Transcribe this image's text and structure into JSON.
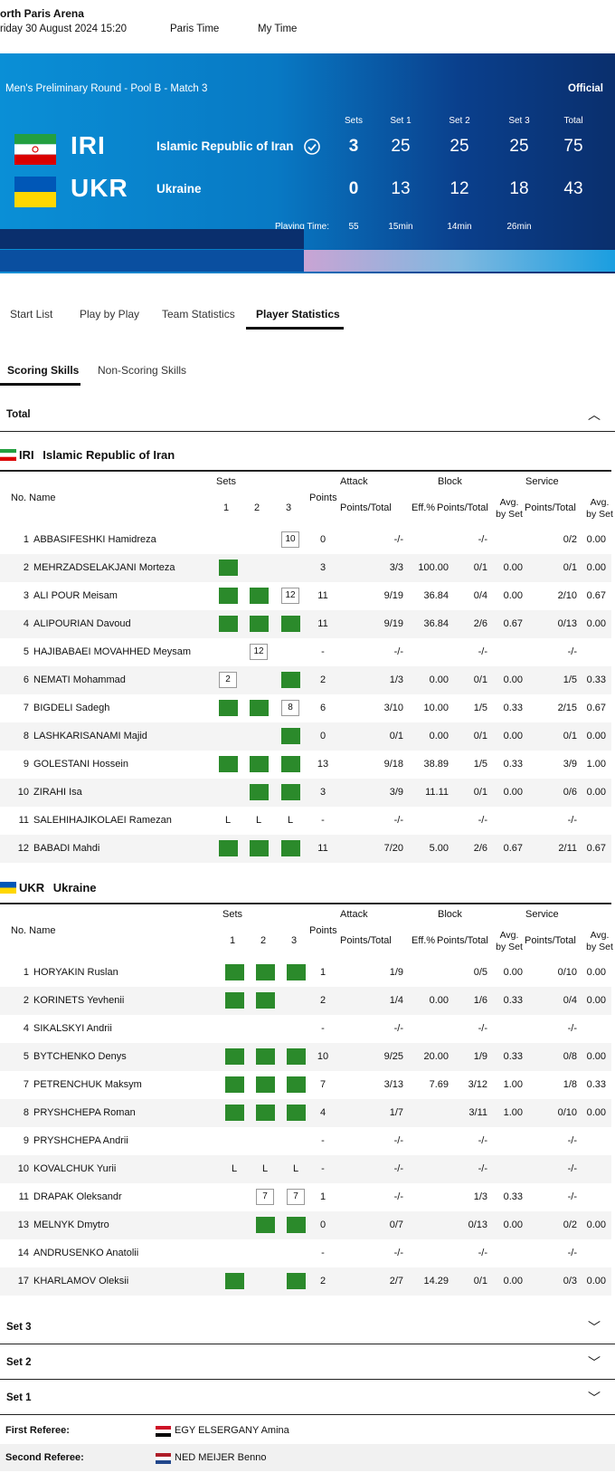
{
  "header": {
    "venue": "orth Paris Arena",
    "date": "riday 30 August 2024 15:20",
    "paris_time": "Paris Time",
    "my_time": "My Time"
  },
  "match": {
    "round": "Men's Preliminary Round - Pool B - Match 3",
    "status": "Official",
    "columns": [
      "Sets",
      "Set 1",
      "Set 2",
      "Set 3",
      "Total"
    ],
    "teams": [
      {
        "code": "IRI",
        "name": "Islamic Republic of Iran",
        "sets": "3",
        "set1": "25",
        "set2": "25",
        "set3": "25",
        "total": "75",
        "winner_icon": "check-circle-icon"
      },
      {
        "code": "UKR",
        "name": "Ukraine",
        "sets": "0",
        "set1": "13",
        "set2": "12",
        "set3": "18",
        "total": "43"
      }
    ],
    "playing_time_label": "Playing Time:",
    "playing_time": [
      "55",
      "15min",
      "14min",
      "26min"
    ]
  },
  "tabs": [
    "Start List",
    "Play by Play",
    "Team Statistics",
    "Player Statistics"
  ],
  "subtabs": [
    "Scoring Skills",
    "Non-Scoring Skills"
  ],
  "total_label": "Total",
  "col_headers": {
    "sets": "Sets",
    "s1": "1",
    "s2": "2",
    "s3": "3",
    "no_name": "No. Name",
    "points": "Points",
    "attack": "Attack",
    "block": "Block",
    "service": "Service",
    "pt": "Points/Total",
    "eff": "Eff.%",
    "avg1": "Avg.",
    "avg2": "by Set"
  },
  "team_stats": [
    {
      "code": "IRI",
      "name": "Islamic Republic of Iran",
      "players": [
        {
          "no": "1",
          "name": "ABBASIFESHKI Hamidreza",
          "s1": "",
          "s2": "",
          "s3": "10",
          "pts": "0",
          "apt": "-/-",
          "eff": "",
          "bpt": "-/-",
          "bavg": "",
          "spt": "0/2",
          "savg": "0.00"
        },
        {
          "no": "2",
          "name": "MEHRZADSELAKJANI Morteza",
          "s1": "G",
          "s2": "",
          "s3": "",
          "pts": "3",
          "apt": "3/3",
          "eff": "100.00",
          "bpt": "0/1",
          "bavg": "0.00",
          "spt": "0/1",
          "savg": "0.00"
        },
        {
          "no": "3",
          "name": "ALI POUR Meisam",
          "s1": "G",
          "s2": "G",
          "s3": "12",
          "pts": "11",
          "apt": "9/19",
          "eff": "36.84",
          "bpt": "0/4",
          "bavg": "0.00",
          "spt": "2/10",
          "savg": "0.67"
        },
        {
          "no": "4",
          "name": "ALIPOURIAN Davoud",
          "s1": "G",
          "s2": "G",
          "s3": "G",
          "pts": "11",
          "apt": "9/19",
          "eff": "36.84",
          "bpt": "2/6",
          "bavg": "0.67",
          "spt": "0/13",
          "savg": "0.00"
        },
        {
          "no": "5",
          "name": "HAJIBABAEI MOVAHHED Meysam",
          "s1": "",
          "s2": "12",
          "s3": "",
          "pts": "-",
          "apt": "-/-",
          "eff": "",
          "bpt": "-/-",
          "bavg": "",
          "spt": "-/-",
          "savg": ""
        },
        {
          "no": "6",
          "name": "NEMATI Mohammad",
          "s1": "2",
          "s2": "",
          "s3": "G",
          "pts": "2",
          "apt": "1/3",
          "eff": "0.00",
          "bpt": "0/1",
          "bavg": "0.00",
          "spt": "1/5",
          "savg": "0.33"
        },
        {
          "no": "7",
          "name": "BIGDELI Sadegh",
          "s1": "G",
          "s2": "G",
          "s3": "8",
          "pts": "6",
          "apt": "3/10",
          "eff": "10.00",
          "bpt": "1/5",
          "bavg": "0.33",
          "spt": "2/15",
          "savg": "0.67"
        },
        {
          "no": "8",
          "name": "LASHKARISANAMI Majid",
          "s1": "",
          "s2": "",
          "s3": "G",
          "pts": "0",
          "apt": "0/1",
          "eff": "0.00",
          "bpt": "0/1",
          "bavg": "0.00",
          "spt": "0/1",
          "savg": "0.00"
        },
        {
          "no": "9",
          "name": "GOLESTANI Hossein",
          "s1": "G",
          "s2": "G",
          "s3": "G",
          "pts": "13",
          "apt": "9/18",
          "eff": "38.89",
          "bpt": "1/5",
          "bavg": "0.33",
          "spt": "3/9",
          "savg": "1.00"
        },
        {
          "no": "10",
          "name": "ZIRAHI Isa",
          "s1": "",
          "s2": "G",
          "s3": "G",
          "pts": "3",
          "apt": "3/9",
          "eff": "11.11",
          "bpt": "0/1",
          "bavg": "0.00",
          "spt": "0/6",
          "savg": "0.00"
        },
        {
          "no": "11",
          "name": "SALEHIHAJIKOLAEI Ramezan",
          "s1": "L",
          "s2": "L",
          "s3": "L",
          "pts": "-",
          "apt": "-/-",
          "eff": "",
          "bpt": "-/-",
          "bavg": "",
          "spt": "-/-",
          "savg": ""
        },
        {
          "no": "12",
          "name": "BABADI Mahdi",
          "s1": "G",
          "s2": "G",
          "s3": "G",
          "pts": "11",
          "apt": "7/20",
          "eff": "5.00",
          "bpt": "2/6",
          "bavg": "0.67",
          "spt": "2/11",
          "savg": "0.67"
        }
      ]
    },
    {
      "code": "UKR",
      "name": "Ukraine",
      "players": [
        {
          "no": "1",
          "name": "HORYAKIN Ruslan",
          "s1": "G",
          "s2": "G",
          "s3": "G",
          "pts": "1",
          "apt": "1/9",
          "eff": "",
          "bpt": "0/5",
          "bavg": "0.00",
          "spt": "0/10",
          "savg": "0.00"
        },
        {
          "no": "2",
          "name": "KORINETS Yevhenii",
          "s1": "G",
          "s2": "G",
          "s3": "",
          "pts": "2",
          "apt": "1/4",
          "eff": "0.00",
          "bpt": "1/6",
          "bavg": "0.33",
          "spt": "0/4",
          "savg": "0.00"
        },
        {
          "no": "4",
          "name": "SIKALSKYI Andrii",
          "s1": "",
          "s2": "",
          "s3": "",
          "pts": "-",
          "apt": "-/-",
          "eff": "",
          "bpt": "-/-",
          "bavg": "",
          "spt": "-/-",
          "savg": ""
        },
        {
          "no": "5",
          "name": "BYTCHENKO Denys",
          "s1": "G",
          "s2": "G",
          "s3": "G",
          "pts": "10",
          "apt": "9/25",
          "eff": "20.00",
          "bpt": "1/9",
          "bavg": "0.33",
          "spt": "0/8",
          "savg": "0.00"
        },
        {
          "no": "7",
          "name": "PETRENCHUK Maksym",
          "s1": "G",
          "s2": "G",
          "s3": "G",
          "pts": "7",
          "apt": "3/13",
          "eff": "7.69",
          "bpt": "3/12",
          "bavg": "1.00",
          "spt": "1/8",
          "savg": "0.33"
        },
        {
          "no": "8",
          "name": "PRYSHCHEPA Roman",
          "s1": "G",
          "s2": "G",
          "s3": "G",
          "pts": "4",
          "apt": "1/7",
          "eff": "",
          "bpt": "3/11",
          "bavg": "1.00",
          "spt": "0/10",
          "savg": "0.00"
        },
        {
          "no": "9",
          "name": "PRYSHCHEPA Andrii",
          "s1": "",
          "s2": "",
          "s3": "",
          "pts": "-",
          "apt": "-/-",
          "eff": "",
          "bpt": "-/-",
          "bavg": "",
          "spt": "-/-",
          "savg": ""
        },
        {
          "no": "10",
          "name": "KOVALCHUK Yurii",
          "s1": "L",
          "s2": "L",
          "s3": "L",
          "pts": "-",
          "apt": "-/-",
          "eff": "",
          "bpt": "-/-",
          "bavg": "",
          "spt": "-/-",
          "savg": ""
        },
        {
          "no": "11",
          "name": "DRAPAK Oleksandr",
          "s1": "",
          "s2": "7",
          "s3": "7",
          "pts": "1",
          "apt": "-/-",
          "eff": "",
          "bpt": "1/3",
          "bavg": "0.33",
          "spt": "-/-",
          "savg": ""
        },
        {
          "no": "13",
          "name": "MELNYK Dmytro",
          "s1": "",
          "s2": "G",
          "s3": "G",
          "pts": "0",
          "apt": "0/7",
          "eff": "",
          "bpt": "0/13",
          "bavg": "0.00",
          "spt": "0/2",
          "savg": "0.00"
        },
        {
          "no": "14",
          "name": "ANDRUSENKO Anatolii",
          "s1": "",
          "s2": "",
          "s3": "",
          "pts": "-",
          "apt": "-/-",
          "eff": "",
          "bpt": "-/-",
          "bavg": "",
          "spt": "-/-",
          "savg": ""
        },
        {
          "no": "17",
          "name": "KHARLAMOV Oleksii",
          "s1": "G",
          "s2": "",
          "s3": "G",
          "pts": "2",
          "apt": "2/7",
          "eff": "14.29",
          "bpt": "0/1",
          "bavg": "0.00",
          "spt": "0/3",
          "savg": "0.00"
        }
      ]
    }
  ],
  "sections": [
    "Set 3",
    "Set 2",
    "Set 1"
  ],
  "referees": [
    {
      "label": "First Referee:",
      "value": "EGY ELSERGANY Amina",
      "flag": "egypt-flag-icon"
    },
    {
      "label": "Second Referee:",
      "value": "NED MEIJER Benno",
      "flag": "netherlands-flag-icon"
    }
  ],
  "colors": {
    "green_square": "#2b8a2b",
    "hero_blue": "#0879c4"
  }
}
